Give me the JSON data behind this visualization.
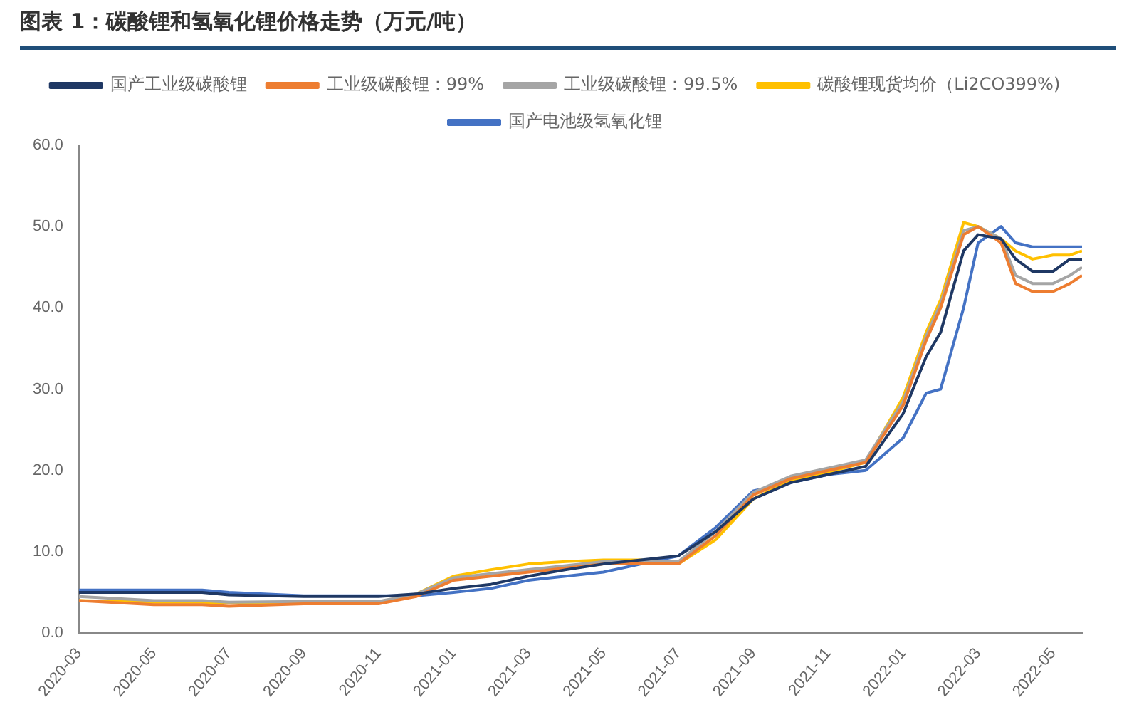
{
  "chart_data": {
    "type": "line",
    "title": "图表 1：碳酸锂和氢氧化锂价格走势（万元/吨）",
    "x": [
      "2020-03-01",
      "2020-05-01",
      "2020-06-10",
      "2020-07-01",
      "2020-09-01",
      "2020-11-01",
      "2020-12-01",
      "2021-01-01",
      "2021-02-01",
      "2021-03-01",
      "2021-04-01",
      "2021-05-01",
      "2021-06-01",
      "2021-07-01",
      "2021-08-01",
      "2021-09-01",
      "2021-10-01",
      "2021-11-01",
      "2021-12-01",
      "2022-01-01",
      "2022-01-20",
      "2022-02-01",
      "2022-02-20",
      "2022-03-01",
      "2022-03-20",
      "2022-04-01",
      "2022-04-15",
      "2022-05-01",
      "2022-05-15",
      "2022-05-25"
    ],
    "series": [
      {
        "name": "国产工业级碳酸锂",
        "color": "#1f3864",
        "values": [
          5.0,
          5.0,
          5.0,
          4.7,
          4.5,
          4.5,
          4.8,
          5.5,
          6.0,
          7.0,
          7.8,
          8.5,
          9.0,
          9.5,
          12.5,
          16.5,
          18.5,
          19.5,
          20.5,
          27,
          34,
          37,
          47,
          49,
          48.5,
          46,
          44.5,
          44.5,
          46,
          46
        ]
      },
      {
        "name": "工业级碳酸锂：99%",
        "color": "#ed7d31",
        "values": [
          4.0,
          3.5,
          3.5,
          3.3,
          3.6,
          3.6,
          4.5,
          6.5,
          7.0,
          7.5,
          8.0,
          8.5,
          8.5,
          8.5,
          12,
          17,
          19,
          20,
          21,
          28,
          36,
          40,
          49,
          50,
          48,
          43,
          42,
          42,
          43,
          44
        ]
      },
      {
        "name": "工业级碳酸锂：99.5%",
        "color": "#a5a5a5",
        "values": [
          4.5,
          4.0,
          4.0,
          3.8,
          3.9,
          3.9,
          4.8,
          6.8,
          7.3,
          7.8,
          8.3,
          8.8,
          8.8,
          8.8,
          12.5,
          17.3,
          19.3,
          20.3,
          21.3,
          28.5,
          36.5,
          40.5,
          49.5,
          50,
          48.5,
          44,
          43,
          43,
          44,
          45
        ]
      },
      {
        "name": "碳酸锂现货均价（Li2CO399%)",
        "color": "#ffc000",
        "values": [
          4.0,
          3.8,
          3.8,
          3.7,
          3.8,
          3.8,
          4.8,
          7.0,
          7.8,
          8.5,
          8.8,
          9.0,
          9.0,
          8.5,
          11.5,
          16.5,
          18.8,
          19.8,
          21,
          29,
          37,
          41,
          50.5,
          50,
          48.5,
          47,
          46,
          46.5,
          46.5,
          47
        ]
      },
      {
        "name": "国产电池级氢氧化锂",
        "color": "#4472c4",
        "values": [
          5.3,
          5.3,
          5.3,
          5.0,
          4.6,
          4.6,
          4.6,
          5.0,
          5.5,
          6.5,
          7.0,
          7.5,
          8.5,
          9.5,
          13,
          17.5,
          18.5,
          19.5,
          20,
          24,
          29.5,
          30,
          40,
          48,
          50,
          48,
          47.5,
          47.5,
          47.5,
          47.5
        ]
      }
    ],
    "xlim": [
      "2020-03-01",
      "2022-05-25"
    ],
    "xticks": [
      {
        "value": "2020-03",
        "label": "2020-03"
      },
      {
        "value": "2020-05",
        "label": "2020-05"
      },
      {
        "value": "2020-07",
        "label": "2020-07"
      },
      {
        "value": "2020-09",
        "label": "2020-09"
      },
      {
        "value": "2020-11",
        "label": "2020-11"
      },
      {
        "value": "2021-01",
        "label": "2021-01"
      },
      {
        "value": "2021-03",
        "label": "2021-03"
      },
      {
        "value": "2021-05",
        "label": "2021-05"
      },
      {
        "value": "2021-07",
        "label": "2021-07"
      },
      {
        "value": "2021-09",
        "label": "2021-09"
      },
      {
        "value": "2021-11",
        "label": "2021-11"
      },
      {
        "value": "2022-01",
        "label": "2022-01"
      },
      {
        "value": "2022-03",
        "label": "2022-03"
      },
      {
        "value": "2022-05",
        "label": "2022-05"
      }
    ],
    "ylim": [
      0,
      60
    ],
    "yticks": [
      {
        "value": 0,
        "label": "0.0"
      },
      {
        "value": 10,
        "label": "10.0"
      },
      {
        "value": 20,
        "label": "20.0"
      },
      {
        "value": 30,
        "label": "30.0"
      },
      {
        "value": 40,
        "label": "40.0"
      },
      {
        "value": 50,
        "label": "50.0"
      },
      {
        "value": 60,
        "label": "60.0"
      }
    ],
    "grid": false,
    "legend": "top",
    "marker": "none",
    "line_style": "solid"
  }
}
